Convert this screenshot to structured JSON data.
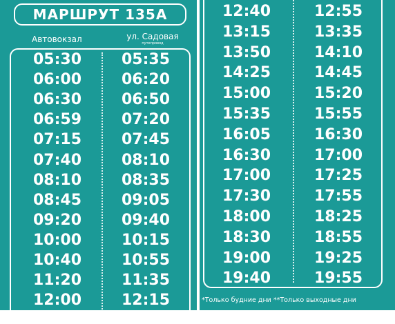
{
  "route_title": "МАРШРУТ 135А",
  "stops": {
    "a": "Автовокзал",
    "b": "ул. Садовая",
    "b_sub": "путепровод"
  },
  "left_times": [
    [
      "05:30",
      "05:35"
    ],
    [
      "06:00",
      "06:20"
    ],
    [
      "06:30",
      "06:50"
    ],
    [
      "06:59",
      "07:20"
    ],
    [
      "07:15",
      "07:45"
    ],
    [
      "07:40",
      "08:10"
    ],
    [
      "08:10",
      "08:35"
    ],
    [
      "08:45",
      "09:05"
    ],
    [
      "09:20",
      "09:40"
    ],
    [
      "10:00",
      "10:15"
    ],
    [
      "10:40",
      "10:55"
    ],
    [
      "11:20",
      "11:35"
    ],
    [
      "12:00",
      "12:15"
    ]
  ],
  "right_times": [
    [
      "12:40",
      "12:55"
    ],
    [
      "13:15",
      "13:35"
    ],
    [
      "13:50",
      "14:10"
    ],
    [
      "14:25",
      "14:45"
    ],
    [
      "15:00",
      "15:20"
    ],
    [
      "15:35",
      "15:55"
    ],
    [
      "16:05",
      "16:30"
    ],
    [
      "16:30",
      "17:00"
    ],
    [
      "17:00",
      "17:25"
    ],
    [
      "17:30",
      "17:55"
    ],
    [
      "18:00",
      "18:25"
    ],
    [
      "18:30",
      "18:55"
    ],
    [
      "19:00",
      "19:25"
    ],
    [
      "19:40",
      "19:55"
    ]
  ],
  "footnote": "*Только будние дни **Только выходные дни",
  "colors": {
    "background": "#1b9a97",
    "text": "#ffffff"
  }
}
